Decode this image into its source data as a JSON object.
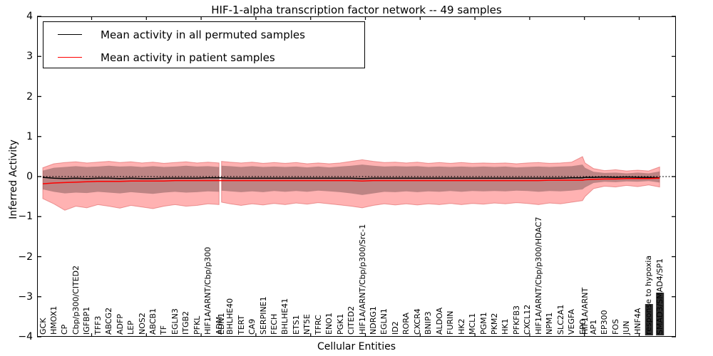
{
  "title": "HIF-1-alpha transcription factor network -- 49 samples",
  "axes": {
    "ylabel": "Inferred Activity",
    "xlabel": "Cellular Entities",
    "yticks": [
      "4",
      "3",
      "2",
      "1",
      "0",
      "−1",
      "−2",
      "−3",
      "−4"
    ],
    "ytick_values": [
      4,
      3,
      2,
      1,
      0,
      -1,
      -2,
      -3,
      -4
    ]
  },
  "legend": {
    "items": [
      {
        "label": "Mean activity in all permuted samples",
        "color": "#000000"
      },
      {
        "label": "Mean activity in patient samples",
        "color": "#ff0000"
      }
    ],
    "position": "upper left"
  },
  "chart_data": {
    "type": "line",
    "title": "HIF-1-alpha transcription factor network -- 49 samples",
    "xlabel": "Cellular Entities",
    "ylabel": "Inferred Activity",
    "ylim": [
      -4,
      4
    ],
    "grid": false,
    "zero_line": {
      "value": 0,
      "style": "dotted",
      "color": "#000000"
    },
    "band_colors": {
      "patient_band": "rgba(255,0,0,0.30)",
      "permuted_band": "rgba(0,0,0,0.26)"
    },
    "gap_after_index": 16,
    "entities": [
      {
        "name": "GCK"
      },
      {
        "name": "HMOX1"
      },
      {
        "name": "CP"
      },
      {
        "name": "Cbp/p300/CITED2"
      },
      {
        "name": "IGFBP1"
      },
      {
        "name": "TFF3"
      },
      {
        "name": "ABCG2"
      },
      {
        "name": "ADFP"
      },
      {
        "name": "LEP"
      },
      {
        "name": "NOS2"
      },
      {
        "name": "ABCB1"
      },
      {
        "name": "TF"
      },
      {
        "name": "EGLN3"
      },
      {
        "name": "ITGB2"
      },
      {
        "name": "PFKL"
      },
      {
        "name": "HIF1A/ARNT/Cbp/p300"
      },
      {
        "name": "ADM"
      },
      {
        "name": "EDN1",
        "overlap": true
      },
      {
        "name": "BHLHE40"
      },
      {
        "name": "TERT"
      },
      {
        "name": "CA9"
      },
      {
        "name": "SERPINE1"
      },
      {
        "name": "FECH"
      },
      {
        "name": "BHLHE41"
      },
      {
        "name": "ETS1"
      },
      {
        "name": "NT5E"
      },
      {
        "name": "TFRC"
      },
      {
        "name": "ENO1"
      },
      {
        "name": "PGK1"
      },
      {
        "name": "CITED2"
      },
      {
        "name": "HIF1A/ARNT/Cbp/p300/Src-1"
      },
      {
        "name": "NDRG1"
      },
      {
        "name": "EGLN1"
      },
      {
        "name": "ID2"
      },
      {
        "name": "RORA"
      },
      {
        "name": "CXCR4"
      },
      {
        "name": "BNIP3"
      },
      {
        "name": "ALDOA"
      },
      {
        "name": "FURIN"
      },
      {
        "name": "HK2"
      },
      {
        "name": "MCL1"
      },
      {
        "name": "PGM1"
      },
      {
        "name": "PKM2"
      },
      {
        "name": "HK1"
      },
      {
        "name": "PFKFB3"
      },
      {
        "name": "CXCL12"
      },
      {
        "name": "HIF1A/ARNT/Cbp/p300/HDAC7"
      },
      {
        "name": "NPM1"
      },
      {
        "name": "SLC2A1"
      },
      {
        "name": "VEGFA"
      },
      {
        "name": "EPO"
      },
      {
        "name": "HIF1A/ARNT",
        "overlap": true
      },
      {
        "name": "AP1"
      },
      {
        "name": "EP300"
      },
      {
        "name": "FOS"
      },
      {
        "name": "JUN"
      },
      {
        "name": "HNF4A"
      },
      {
        "name": "response to hypoxia",
        "blob": true
      },
      {
        "name": "SMAD3/SMAD4/SP1",
        "blob": true
      }
    ],
    "series": [
      {
        "name": "Mean activity in all permuted samples",
        "color": "#000000",
        "values": [
          -0.02,
          -0.04,
          -0.05,
          -0.04,
          -0.05,
          -0.04,
          -0.04,
          -0.05,
          -0.04,
          -0.05,
          -0.05,
          -0.04,
          -0.04,
          -0.04,
          -0.04,
          -0.03,
          -0.03,
          -0.03,
          -0.04,
          -0.04,
          -0.04,
          -0.04,
          -0.04,
          -0.04,
          -0.04,
          -0.04,
          -0.04,
          -0.04,
          -0.04,
          -0.04,
          -0.05,
          -0.04,
          -0.04,
          -0.04,
          -0.04,
          -0.04,
          -0.04,
          -0.04,
          -0.04,
          -0.04,
          -0.04,
          -0.04,
          -0.04,
          -0.04,
          -0.04,
          -0.04,
          -0.04,
          -0.04,
          -0.04,
          -0.03,
          -0.03,
          -0.02,
          -0.02,
          -0.01,
          -0.02,
          -0.01,
          -0.02,
          -0.02,
          -0.03
        ]
      },
      {
        "name": "Mean activity in patient samples",
        "color": "#ff0000",
        "values": [
          -0.18,
          -0.16,
          -0.15,
          -0.14,
          -0.13,
          -0.12,
          -0.12,
          -0.12,
          -0.11,
          -0.11,
          -0.11,
          -0.11,
          -0.1,
          -0.1,
          -0.1,
          -0.1,
          -0.1,
          -0.1,
          -0.1,
          -0.1,
          -0.1,
          -0.1,
          -0.1,
          -0.1,
          -0.1,
          -0.1,
          -0.1,
          -0.1,
          -0.1,
          -0.1,
          -0.11,
          -0.1,
          -0.1,
          -0.1,
          -0.1,
          -0.1,
          -0.1,
          -0.1,
          -0.1,
          -0.1,
          -0.1,
          -0.1,
          -0.1,
          -0.1,
          -0.1,
          -0.1,
          -0.1,
          -0.09,
          -0.09,
          -0.09,
          -0.09,
          -0.08,
          -0.07,
          -0.06,
          -0.06,
          -0.05,
          -0.05,
          -0.05,
          -0.04
        ]
      }
    ],
    "bands": {
      "outer_top": [
        0.22,
        0.32,
        0.35,
        0.37,
        0.34,
        0.36,
        0.38,
        0.35,
        0.37,
        0.34,
        0.36,
        0.33,
        0.35,
        0.37,
        0.34,
        0.36,
        0.34,
        0.38,
        0.36,
        0.34,
        0.36,
        0.33,
        0.35,
        0.33,
        0.35,
        0.32,
        0.34,
        0.32,
        0.34,
        0.38,
        0.42,
        0.38,
        0.35,
        0.36,
        0.34,
        0.36,
        0.33,
        0.35,
        0.33,
        0.35,
        0.33,
        0.34,
        0.33,
        0.34,
        0.32,
        0.34,
        0.35,
        0.33,
        0.34,
        0.36,
        0.5,
        0.34,
        0.2,
        0.15,
        0.17,
        0.14,
        0.16,
        0.14,
        0.24
      ],
      "outer_bottom": [
        -0.55,
        -0.68,
        -0.84,
        -0.74,
        -0.78,
        -0.7,
        -0.74,
        -0.79,
        -0.72,
        -0.76,
        -0.8,
        -0.74,
        -0.7,
        -0.74,
        -0.72,
        -0.68,
        -0.7,
        -0.64,
        -0.68,
        -0.72,
        -0.68,
        -0.71,
        -0.67,
        -0.7,
        -0.66,
        -0.69,
        -0.65,
        -0.68,
        -0.71,
        -0.74,
        -0.78,
        -0.72,
        -0.68,
        -0.71,
        -0.68,
        -0.71,
        -0.68,
        -0.7,
        -0.67,
        -0.7,
        -0.67,
        -0.69,
        -0.66,
        -0.68,
        -0.65,
        -0.67,
        -0.7,
        -0.66,
        -0.68,
        -0.64,
        -0.6,
        -0.5,
        -0.3,
        -0.24,
        -0.26,
        -0.22,
        -0.25,
        -0.21,
        -0.26
      ],
      "inner_top": [
        0.15,
        0.22,
        0.24,
        0.26,
        0.24,
        0.25,
        0.27,
        0.25,
        0.26,
        0.24,
        0.26,
        0.24,
        0.25,
        0.27,
        0.25,
        0.26,
        0.24,
        0.27,
        0.26,
        0.24,
        0.26,
        0.24,
        0.25,
        0.24,
        0.25,
        0.23,
        0.25,
        0.23,
        0.25,
        0.27,
        0.3,
        0.27,
        0.25,
        0.26,
        0.25,
        0.26,
        0.24,
        0.25,
        0.24,
        0.25,
        0.24,
        0.25,
        0.24,
        0.25,
        0.23,
        0.24,
        0.25,
        0.24,
        0.25,
        0.26,
        0.3,
        0.22,
        0.12,
        0.09,
        0.1,
        0.08,
        0.1,
        0.08,
        0.13
      ],
      "inner_bottom": [
        -0.32,
        -0.38,
        -0.42,
        -0.4,
        -0.41,
        -0.38,
        -0.4,
        -0.42,
        -0.39,
        -0.41,
        -0.43,
        -0.4,
        -0.38,
        -0.4,
        -0.39,
        -0.37,
        -0.38,
        -0.35,
        -0.37,
        -0.39,
        -0.37,
        -0.39,
        -0.36,
        -0.38,
        -0.36,
        -0.38,
        -0.35,
        -0.37,
        -0.39,
        -0.42,
        -0.46,
        -0.42,
        -0.38,
        -0.39,
        -0.37,
        -0.39,
        -0.37,
        -0.38,
        -0.36,
        -0.38,
        -0.36,
        -0.37,
        -0.36,
        -0.37,
        -0.35,
        -0.36,
        -0.38,
        -0.36,
        -0.37,
        -0.35,
        -0.32,
        -0.27,
        -0.16,
        -0.13,
        -0.14,
        -0.12,
        -0.13,
        -0.11,
        -0.15
      ]
    }
  }
}
